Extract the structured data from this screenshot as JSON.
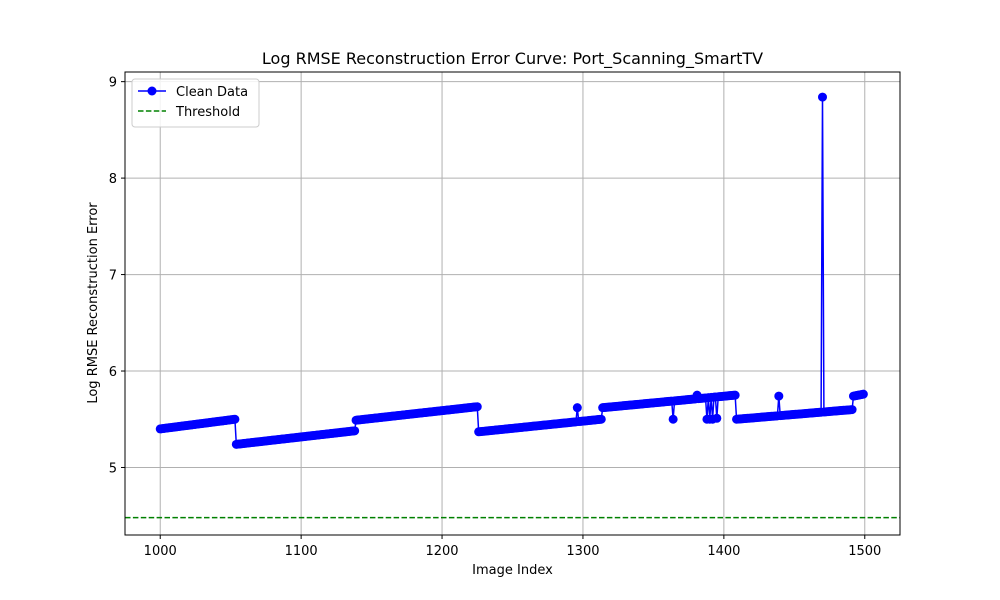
{
  "chart_data": {
    "type": "line",
    "title": "Log RMSE Reconstruction Error Curve: Port_Scanning_SmartTV",
    "xlabel": "Image Index",
    "ylabel": "Log RMSE Reconstruction Error",
    "xlim": [
      975,
      1525
    ],
    "ylim": [
      4.3,
      9.1
    ],
    "xticks": [
      1000,
      1100,
      1200,
      1300,
      1400,
      1500
    ],
    "yticks": [
      5,
      6,
      7,
      8,
      9
    ],
    "grid": true,
    "legend_position": "top-left",
    "colors": {
      "series": "#0000ff",
      "threshold": "#008000",
      "grid": "#b0b0b0"
    },
    "series": [
      {
        "name": "Clean Data",
        "segments": [
          {
            "x_start": 1000,
            "x_end": 1053,
            "y_start": 5.4,
            "y_end": 5.5
          },
          {
            "x_start": 1054,
            "x_end": 1138,
            "y_start": 5.24,
            "y_end": 5.38
          },
          {
            "x_start": 1139,
            "x_end": 1225,
            "y_start": 5.49,
            "y_end": 5.63
          },
          {
            "x_start": 1226,
            "x_end": 1313,
            "y_start": 5.37,
            "y_end": 5.5
          },
          {
            "x_start": 1314,
            "x_end": 1408,
            "y_start": 5.62,
            "y_end": 5.75
          },
          {
            "x_start": 1409,
            "x_end": 1491,
            "y_start": 5.5,
            "y_end": 5.6
          },
          {
            "x_start": 1492,
            "x_end": 1499,
            "y_start": 5.74,
            "y_end": 5.76
          }
        ],
        "outliers": [
          {
            "x": 1296,
            "y": 5.62
          },
          {
            "x": 1364,
            "y": 5.5
          },
          {
            "x": 1381,
            "y": 5.75
          },
          {
            "x": 1388,
            "y": 5.5
          },
          {
            "x": 1390,
            "y": 5.5
          },
          {
            "x": 1392,
            "y": 5.5
          },
          {
            "x": 1395,
            "y": 5.51
          },
          {
            "x": 1439,
            "y": 5.74
          },
          {
            "x": 1470,
            "y": 8.84
          }
        ]
      },
      {
        "name": "Threshold",
        "style": "dashed",
        "y": 4.48
      }
    ]
  }
}
